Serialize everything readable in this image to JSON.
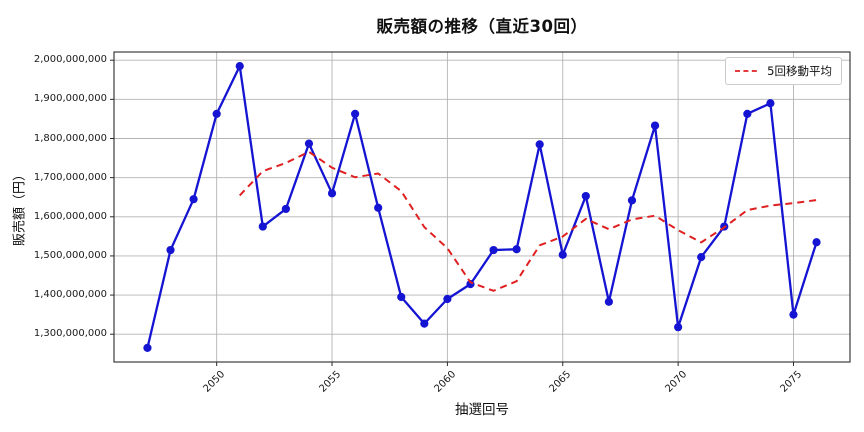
{
  "title": "販売額の推移（直近30回）",
  "x_axis": {
    "label": "抽選回号",
    "tick_labels": [
      "2050",
      "2055",
      "2060",
      "2065",
      "2070",
      "2075"
    ],
    "tick_values": [
      2050,
      2055,
      2060,
      2065,
      2070,
      2075
    ]
  },
  "y_axis": {
    "label": "販売額（円）",
    "tick_labels": [
      "2,000,000,000",
      "1,900,000,000",
      "1,800,000,000",
      "1,700,000,000",
      "1,600,000,000",
      "1,500,000,000",
      "1,400,000,000",
      "1,300,000,000"
    ],
    "tick_values": [
      2000000000,
      1900000000,
      1800000000,
      1700000000,
      1600000000,
      1500000000,
      1400000000,
      1300000000
    ]
  },
  "legend": {
    "label": "5回移動平均",
    "position": "upper right"
  },
  "colors": {
    "sales_line": "#1414d2",
    "moving_average_line": "#e02020",
    "grid": "#b4b4b4",
    "spine": "#2a2a2a",
    "background": "#ffffff"
  },
  "chart_data": {
    "type": "line",
    "title": "販売額の推移（直近30回）",
    "xlabel": "抽選回号",
    "ylabel": "販売額（円）",
    "grid": true,
    "legend_position": "upper right",
    "xlim": [
      2045.55,
      2077.45
    ],
    "ylim": [
      1229000000,
      2021000000
    ],
    "x": [
      2047,
      2048,
      2049,
      2050,
      2051,
      2052,
      2053,
      2054,
      2055,
      2056,
      2057,
      2058,
      2059,
      2060,
      2061,
      2062,
      2063,
      2064,
      2065,
      2066,
      2067,
      2068,
      2069,
      2070,
      2071,
      2072,
      2073,
      2074,
      2075,
      2076
    ],
    "series": [
      {
        "name": "販売額",
        "style": "solid",
        "marker": "circle",
        "values": [
          1265000000,
          1515000000,
          1645000000,
          1863000000,
          1985000000,
          1575000000,
          1620000000,
          1787000000,
          1660000000,
          1863000000,
          1623000000,
          1395000000,
          1327000000,
          1390000000,
          1428000000,
          1515000000,
          1517000000,
          1785000000,
          1503000000,
          1653000000,
          1383000000,
          1642000000,
          1833000000,
          1318000000,
          1497000000,
          1575000000,
          1863000000,
          1890000000,
          1350000000,
          1535000000
        ]
      },
      {
        "name": "5回移動平均",
        "style": "dashed",
        "marker": "none",
        "x": [
          2051,
          2052,
          2053,
          2054,
          2055,
          2056,
          2057,
          2058,
          2059,
          2060,
          2061,
          2062,
          2063,
          2064,
          2065,
          2066,
          2067,
          2068,
          2069,
          2070,
          2071,
          2072,
          2073,
          2074,
          2075,
          2076
        ],
        "values": [
          1654600000,
          1716600000,
          1737600000,
          1766000000,
          1725400000,
          1701000000,
          1710600000,
          1665600000,
          1573600000,
          1519600000,
          1432600000,
          1411000000,
          1435400000,
          1527000000,
          1549600000,
          1594600000,
          1568200000,
          1593200000,
          1602800000,
          1565800000,
          1534600000,
          1573000000,
          1617200000,
          1628600000,
          1635000000,
          1642600000
        ]
      }
    ]
  }
}
